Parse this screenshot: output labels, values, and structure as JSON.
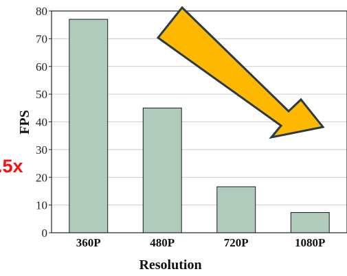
{
  "chart_data": {
    "type": "bar",
    "categories": [
      "360P",
      "480P",
      "720P",
      "1080P"
    ],
    "values": [
      77,
      45,
      16.6,
      7.3
    ],
    "ylim": [
      0,
      80
    ],
    "yticks": [
      "0",
      "10",
      "20",
      "30",
      "40",
      "50",
      "60",
      "70",
      "80"
    ],
    "ylabel": "FPS",
    "xlabel": "Resolution",
    "grid": "horizontal",
    "annotation": ".5x",
    "colors": {
      "bar_fill": "#b0cbbb",
      "bar_stroke": "#1a1a1a",
      "grid": "#cccccc",
      "arrow_fill": "#ffb800",
      "arrow_stroke": "#2b3a4a",
      "annotation": "#ff1010"
    }
  }
}
